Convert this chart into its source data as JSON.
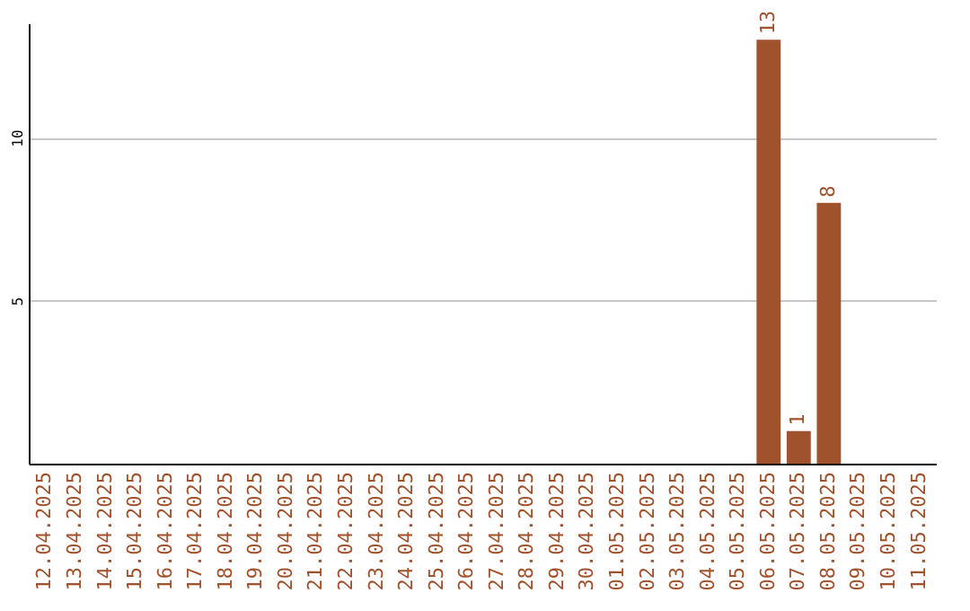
{
  "chart_data": {
    "type": "bar",
    "categories": [
      "12.04.2025",
      "13.04.2025",
      "14.04.2025",
      "15.04.2025",
      "16.04.2025",
      "17.04.2025",
      "18.04.2025",
      "19.04.2025",
      "20.04.2025",
      "21.04.2025",
      "22.04.2025",
      "23.04.2025",
      "24.04.2025",
      "25.04.2025",
      "26.04.2025",
      "27.04.2025",
      "28.04.2025",
      "29.04.2025",
      "30.04.2025",
      "01.05.2025",
      "02.05.2025",
      "03.05.2025",
      "04.05.2025",
      "05.05.2025",
      "06.05.2025",
      "07.05.2025",
      "08.05.2025",
      "09.05.2025",
      "10.05.2025",
      "11.05.2025"
    ],
    "values": [
      null,
      null,
      null,
      null,
      null,
      null,
      null,
      null,
      null,
      null,
      null,
      null,
      null,
      null,
      null,
      null,
      null,
      null,
      null,
      null,
      null,
      null,
      null,
      null,
      13,
      1,
      8,
      null,
      null,
      null
    ],
    "color": "#a0522d",
    "ylim": [
      0,
      13.5
    ],
    "yticks": [
      5,
      10
    ],
    "grid": "y",
    "data_labels": true
  }
}
